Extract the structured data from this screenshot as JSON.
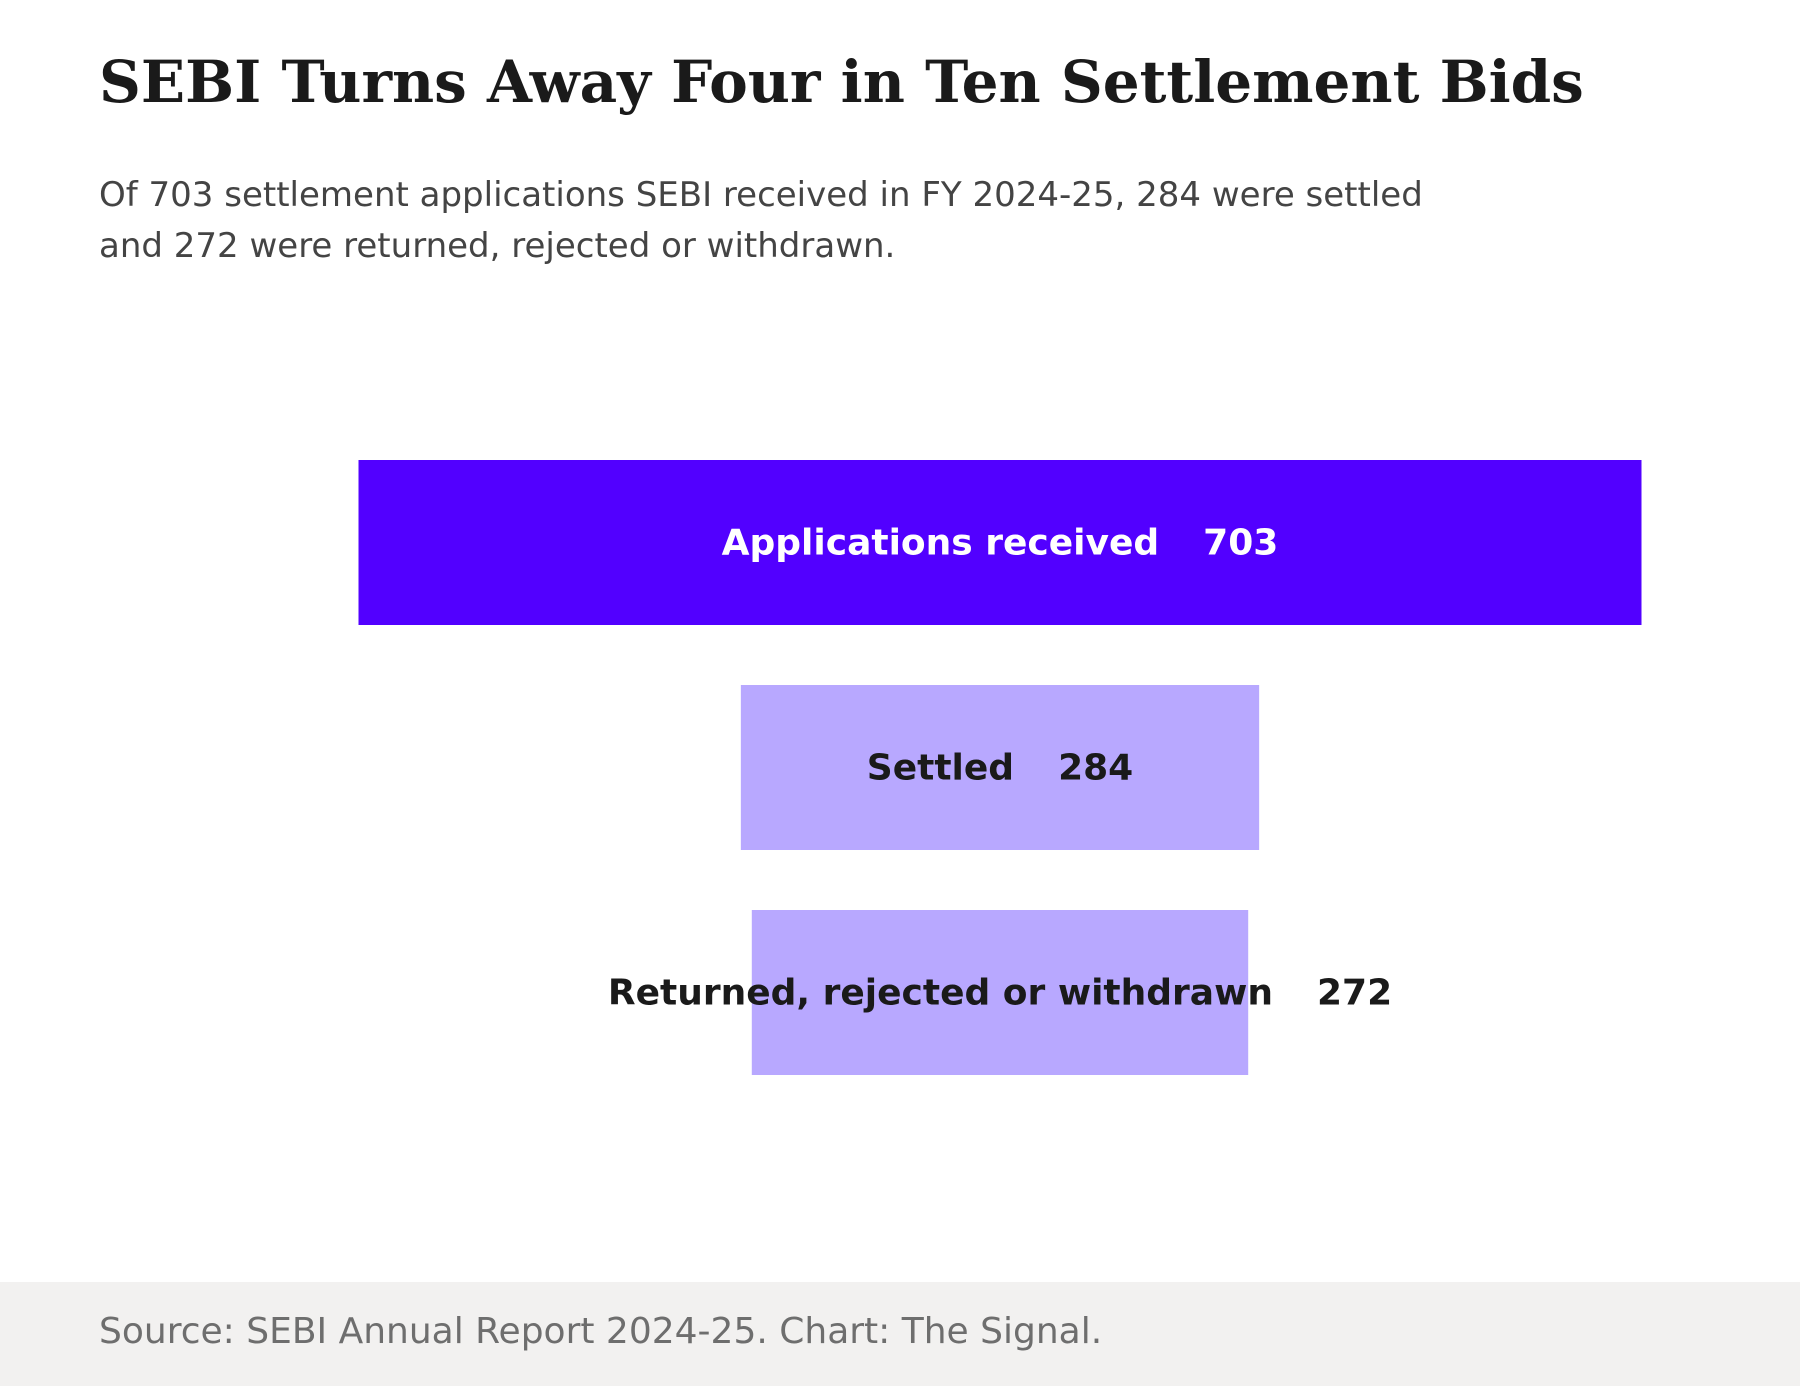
{
  "title": "SEBI Turns Away Four in Ten Settlement Bids",
  "subtitle": "Of 703 settlement applications SEBI received in FY 2024-25, 284 were settled and 272 were returned, rejected or withdrawn.",
  "source": "Source: SEBI Annual Report 2024-25. Chart: The Signal.",
  "colors": {
    "primary_bar": "#5200ff",
    "secondary_bar": "#b8a8ff",
    "label_on_primary": "#ffffff",
    "label_on_secondary": "#1a1a1a",
    "footer_bg": "#f2f1f0"
  },
  "chart_data": {
    "type": "bar",
    "orientation": "horizontal funnel (centered bars)",
    "categories": [
      "Applications received",
      "Settled",
      "Returned, rejected or withdrawn"
    ],
    "values": [
      703,
      284,
      272
    ],
    "grid": false,
    "legend": "none"
  }
}
